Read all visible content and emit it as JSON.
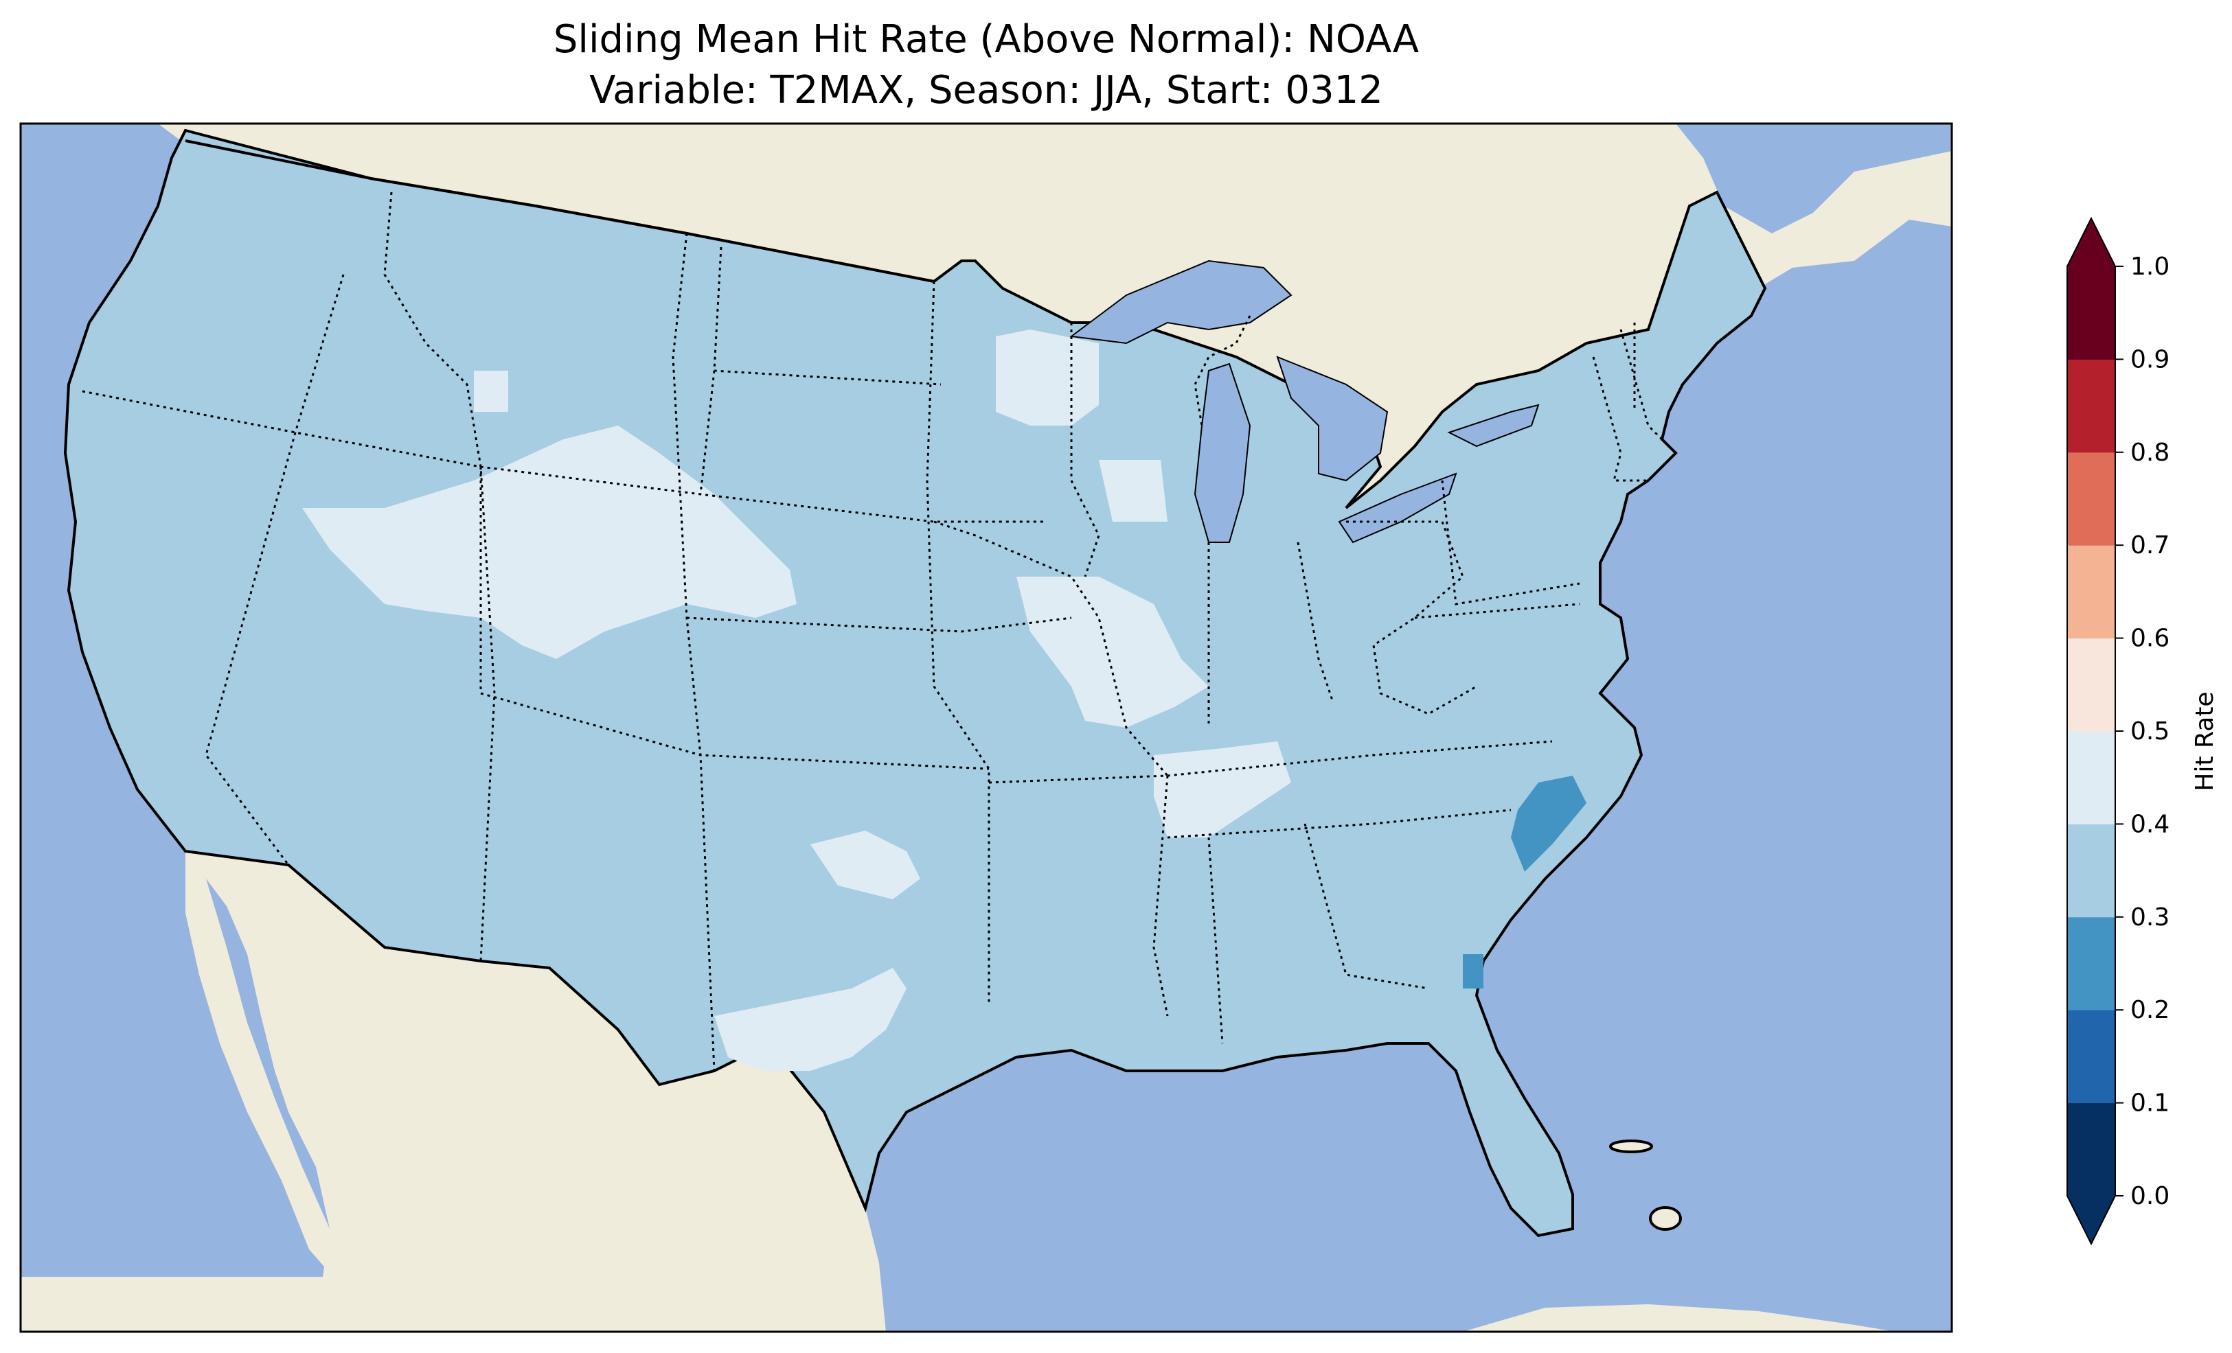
{
  "title": {
    "line1": "Sliding Mean Hit Rate (Above Normal): NOAA",
    "line2": "Variable: T2MAX, Season: JJA, Start: 0312"
  },
  "colors": {
    "ocean": "#96b4e0",
    "land": "#f0ecdc",
    "lakes": "#96b4e0"
  },
  "colorbar": {
    "label": "Hit Rate",
    "extend": "both",
    "ticks": [
      "0.0",
      "0.1",
      "0.2",
      "0.3",
      "0.4",
      "0.5",
      "0.6",
      "0.7",
      "0.8",
      "0.9",
      "1.0"
    ],
    "under_color": "#053061",
    "over_color": "#67001f",
    "bins": [
      {
        "range": [
          0.0,
          0.1
        ],
        "color": "#053061"
      },
      {
        "range": [
          0.1,
          0.2
        ],
        "color": "#2166ac"
      },
      {
        "range": [
          0.2,
          0.3
        ],
        "color": "#4393c3"
      },
      {
        "range": [
          0.3,
          0.4
        ],
        "color": "#a6cde2"
      },
      {
        "range": [
          0.4,
          0.5
        ],
        "color": "#e0ecf4"
      },
      {
        "range": [
          0.5,
          0.6
        ],
        "color": "#f8e6dc"
      },
      {
        "range": [
          0.6,
          0.7
        ],
        "color": "#f4b393"
      },
      {
        "range": [
          0.7,
          0.8
        ],
        "color": "#de6e57"
      },
      {
        "range": [
          0.8,
          0.9
        ],
        "color": "#b5202d"
      },
      {
        "range": [
          0.9,
          1.0
        ],
        "color": "#67001f"
      }
    ]
  },
  "chart_data": {
    "type": "heatmap",
    "title": "Sliding Mean Hit Rate (Above Normal): NOAA",
    "subtitle": "Variable: T2MAX, Season: JJA, Start: 0312",
    "colorbar_label": "Hit Rate",
    "value_range": [
      0.0,
      1.0
    ],
    "region": "Contiguous United States",
    "dominant_value_bin": [
      0.3,
      0.4
    ],
    "regions": [
      {
        "area": "Most of the contiguous US",
        "bin": [
          0.3,
          0.4
        ]
      },
      {
        "area": "Wyoming / northern Colorado / Utah",
        "bin": [
          0.4,
          0.5
        ]
      },
      {
        "area": "Southern Minnesota / northwestern Wisconsin",
        "bin": [
          0.4,
          0.5
        ]
      },
      {
        "area": "Iowa / northern Missouri / western Illinois",
        "bin": [
          0.4,
          0.5
        ]
      },
      {
        "area": "Southern Idaho / northern Nevada",
        "bin": [
          0.4,
          0.5
        ]
      },
      {
        "area": "Western Tennessee",
        "bin": [
          0.4,
          0.5
        ]
      },
      {
        "area": "North Texas / southern Oklahoma",
        "bin": [
          0.4,
          0.5
        ]
      },
      {
        "area": "Southwest Texas",
        "bin": [
          0.4,
          0.5
        ]
      },
      {
        "area": "Coastal North Carolina",
        "bin": [
          0.2,
          0.3
        ]
      },
      {
        "area": "Coastal Georgia",
        "bin": [
          0.2,
          0.3
        ]
      }
    ]
  }
}
